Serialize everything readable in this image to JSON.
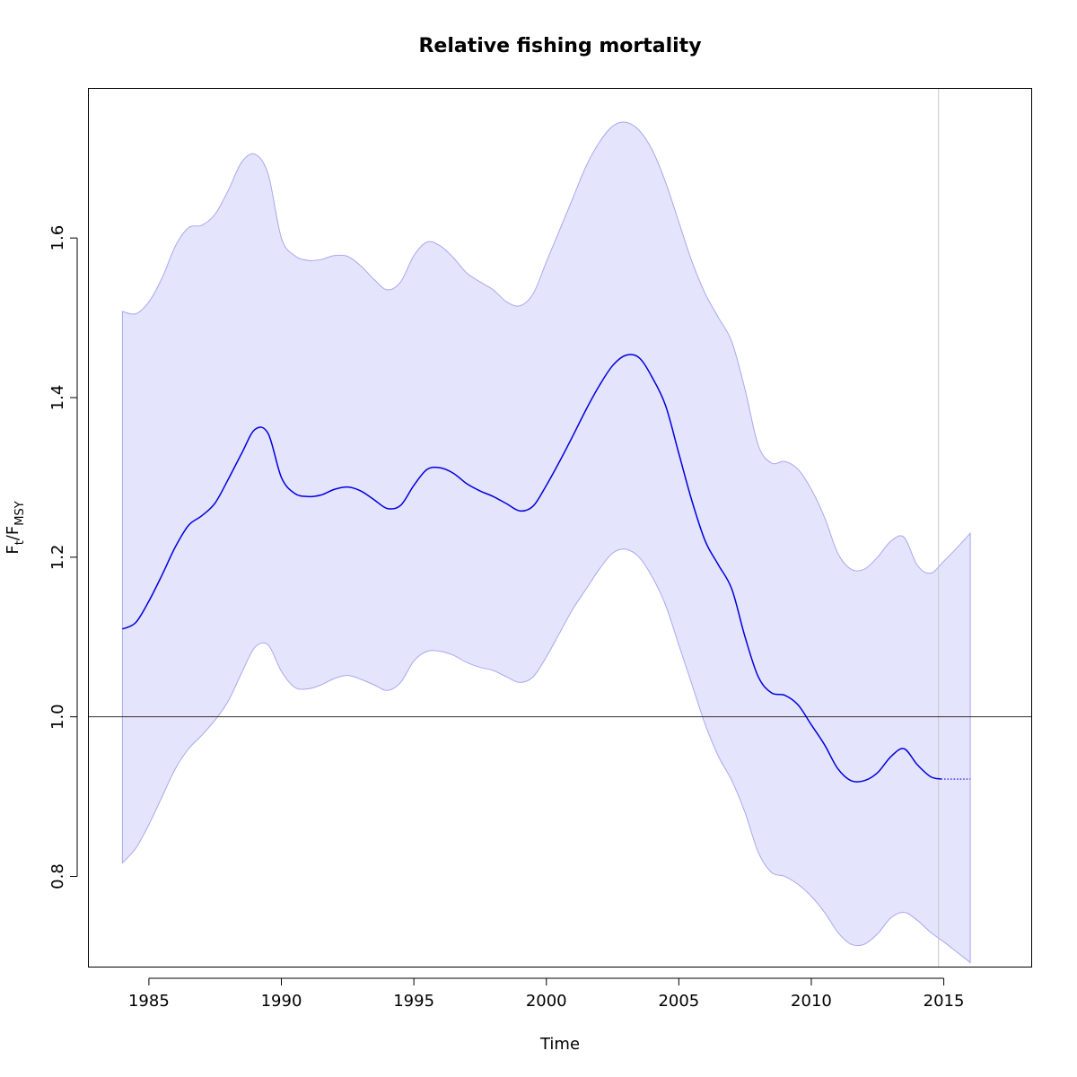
{
  "chart_data": {
    "type": "line",
    "title": "Relative fishing mortality",
    "xlabel": "Time",
    "ylabel": {
      "main": "F",
      "sub_t": "t",
      "slash": "/F",
      "sub_msy": "MSY"
    },
    "xlim": [
      1982.7,
      2018.3
    ],
    "ylim": [
      0.687,
      1.788
    ],
    "x_ticks": [
      1985,
      1990,
      1995,
      2000,
      2005,
      2010,
      2015
    ],
    "x_tick_labels": [
      "1985",
      "1990",
      "1995",
      "2000",
      "2005",
      "2010",
      "2015"
    ],
    "y_ticks": [
      0.8,
      1.0,
      1.2,
      1.4,
      1.6
    ],
    "y_tick_labels": [
      "0.8",
      "1.0",
      "1.2",
      "1.4",
      "1.6"
    ],
    "reference_line_y": 1.0,
    "vertical_line_x": 2014.8,
    "colors": {
      "estimate": "#0000dd",
      "band_fill": "#e4e4fc",
      "band_edge": "#a8a8f0",
      "reference": "#333333",
      "vertical": "#c8c8c8"
    },
    "series": [
      {
        "role": "estimate",
        "x": [
          1984,
          1984.5,
          1985,
          1985.5,
          1986,
          1986.5,
          1987,
          1987.5,
          1988,
          1988.5,
          1989,
          1989.5,
          1990,
          1990.5,
          1991,
          1991.5,
          1992,
          1992.5,
          1993,
          1993.5,
          1994,
          1994.5,
          1995,
          1995.5,
          1996,
          1996.5,
          1997,
          1997.5,
          1998,
          1998.5,
          1999,
          1999.5,
          2000,
          2000.5,
          2001,
          2001.5,
          2002,
          2002.5,
          2003,
          2003.5,
          2004,
          2004.5,
          2005,
          2005.5,
          2006,
          2006.5,
          2007,
          2007.5,
          2008,
          2008.5,
          2009,
          2009.5,
          2010,
          2010.5,
          2011,
          2011.5,
          2012,
          2012.5,
          2013,
          2013.5,
          2014,
          2014.5,
          2014.9
        ],
        "y": [
          1.11,
          1.118,
          1.145,
          1.178,
          1.213,
          1.24,
          1.252,
          1.268,
          1.298,
          1.33,
          1.36,
          1.355,
          1.3,
          1.28,
          1.276,
          1.278,
          1.285,
          1.288,
          1.283,
          1.272,
          1.261,
          1.265,
          1.29,
          1.31,
          1.312,
          1.305,
          1.292,
          1.283,
          1.276,
          1.267,
          1.258,
          1.264,
          1.29,
          1.32,
          1.352,
          1.385,
          1.415,
          1.44,
          1.453,
          1.45,
          1.425,
          1.39,
          1.33,
          1.27,
          1.22,
          1.19,
          1.16,
          1.1,
          1.05,
          1.03,
          1.027,
          1.015,
          0.99,
          0.965,
          0.935,
          0.92,
          0.92,
          0.93,
          0.95,
          0.96,
          0.94,
          0.925,
          0.922
        ]
      },
      {
        "role": "projection",
        "x": [
          2014.9,
          2016
        ],
        "y": [
          0.922,
          0.922
        ]
      },
      {
        "role": "upper",
        "x": [
          1984,
          1984.5,
          1985,
          1985.5,
          1986,
          1986.5,
          1987,
          1987.5,
          1988,
          1988.5,
          1989,
          1989.5,
          1990,
          1990.5,
          1991,
          1991.5,
          1992,
          1992.5,
          1993,
          1993.5,
          1994,
          1994.5,
          1995,
          1995.5,
          1996,
          1996.5,
          1997,
          1997.5,
          1998,
          1998.5,
          1999,
          1999.5,
          2000,
          2000.5,
          2001,
          2001.5,
          2002,
          2002.5,
          2003,
          2003.5,
          2004,
          2004.5,
          2005,
          2005.5,
          2006,
          2006.5,
          2007,
          2007.5,
          2008,
          2008.5,
          2009,
          2009.5,
          2010,
          2010.5,
          2011,
          2011.5,
          2012,
          2012.5,
          2013,
          2013.5,
          2014,
          2014.5,
          2015,
          2015.5,
          2016
        ],
        "y": [
          1.508,
          1.505,
          1.52,
          1.55,
          1.59,
          1.613,
          1.616,
          1.63,
          1.66,
          1.695,
          1.705,
          1.68,
          1.6,
          1.578,
          1.572,
          1.573,
          1.578,
          1.577,
          1.565,
          1.548,
          1.535,
          1.545,
          1.578,
          1.595,
          1.59,
          1.575,
          1.556,
          1.545,
          1.535,
          1.52,
          1.515,
          1.53,
          1.57,
          1.61,
          1.65,
          1.69,
          1.72,
          1.74,
          1.745,
          1.735,
          1.71,
          1.67,
          1.62,
          1.57,
          1.53,
          1.5,
          1.47,
          1.41,
          1.34,
          1.318,
          1.32,
          1.31,
          1.285,
          1.25,
          1.205,
          1.185,
          1.185,
          1.2,
          1.22,
          1.225,
          1.19,
          1.18,
          1.195,
          1.212,
          1.23
        ]
      },
      {
        "role": "lower",
        "x": [
          1984,
          1984.5,
          1985,
          1985.5,
          1986,
          1986.5,
          1987,
          1987.5,
          1988,
          1988.5,
          1989,
          1989.5,
          1990,
          1990.5,
          1991,
          1991.5,
          1992,
          1992.5,
          1993,
          1993.5,
          1994,
          1994.5,
          1995,
          1995.5,
          1996,
          1996.5,
          1997,
          1997.5,
          1998,
          1998.5,
          1999,
          1999.5,
          2000,
          2000.5,
          2001,
          2001.5,
          2002,
          2002.5,
          2003,
          2003.5,
          2004,
          2004.5,
          2005,
          2005.5,
          2006,
          2006.5,
          2007,
          2007.5,
          2008,
          2008.5,
          2009,
          2009.5,
          2010,
          2010.5,
          2011,
          2011.5,
          2012,
          2012.5,
          2013,
          2013.5,
          2014,
          2014.5,
          2015,
          2015.5,
          2016
        ],
        "y": [
          0.817,
          0.835,
          0.865,
          0.9,
          0.935,
          0.96,
          0.977,
          0.996,
          1.02,
          1.055,
          1.087,
          1.09,
          1.057,
          1.037,
          1.035,
          1.04,
          1.048,
          1.052,
          1.047,
          1.04,
          1.033,
          1.043,
          1.07,
          1.082,
          1.082,
          1.077,
          1.068,
          1.062,
          1.058,
          1.05,
          1.043,
          1.05,
          1.075,
          1.105,
          1.135,
          1.16,
          1.185,
          1.205,
          1.21,
          1.2,
          1.175,
          1.14,
          1.09,
          1.04,
          0.99,
          0.95,
          0.92,
          0.88,
          0.83,
          0.805,
          0.8,
          0.79,
          0.775,
          0.755,
          0.73,
          0.715,
          0.715,
          0.728,
          0.748,
          0.755,
          0.745,
          0.73,
          0.718,
          0.705,
          0.692
        ]
      }
    ]
  }
}
